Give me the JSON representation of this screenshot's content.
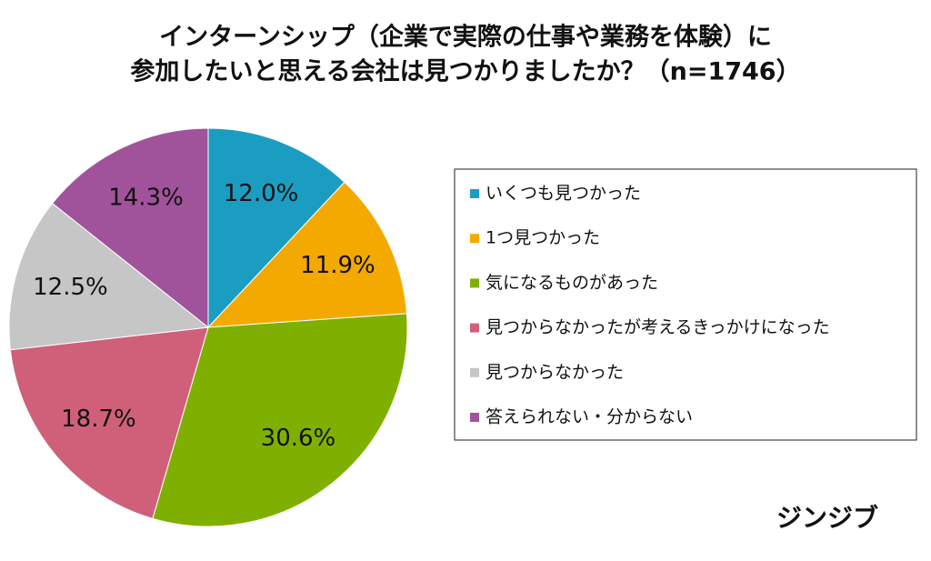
{
  "chart_data": {
    "type": "pie",
    "title": [
      "インターンシップ（企業で実際の仕事や業務を体験）に",
      "参加したいと思える会社は見つかりましたか？（n=1746）"
    ],
    "categories": [
      "いくつも見つかった",
      "1つ見つかった",
      "気になるものがあった",
      "見つからなかったが考えるきっかけになった",
      "見つからなかった",
      "答えられない・分からない"
    ],
    "values": [
      12.0,
      11.9,
      30.6,
      18.7,
      12.5,
      14.3
    ],
    "value_labels": [
      "12.0%",
      "11.9%",
      "30.6%",
      "18.7%",
      "12.5%",
      "14.3%"
    ],
    "colors": [
      "#1b9dc2",
      "#f4a900",
      "#7fb000",
      "#d0607a",
      "#c6c6c6",
      "#a0539a"
    ],
    "legend": "right",
    "brand": "ジンジブ"
  }
}
